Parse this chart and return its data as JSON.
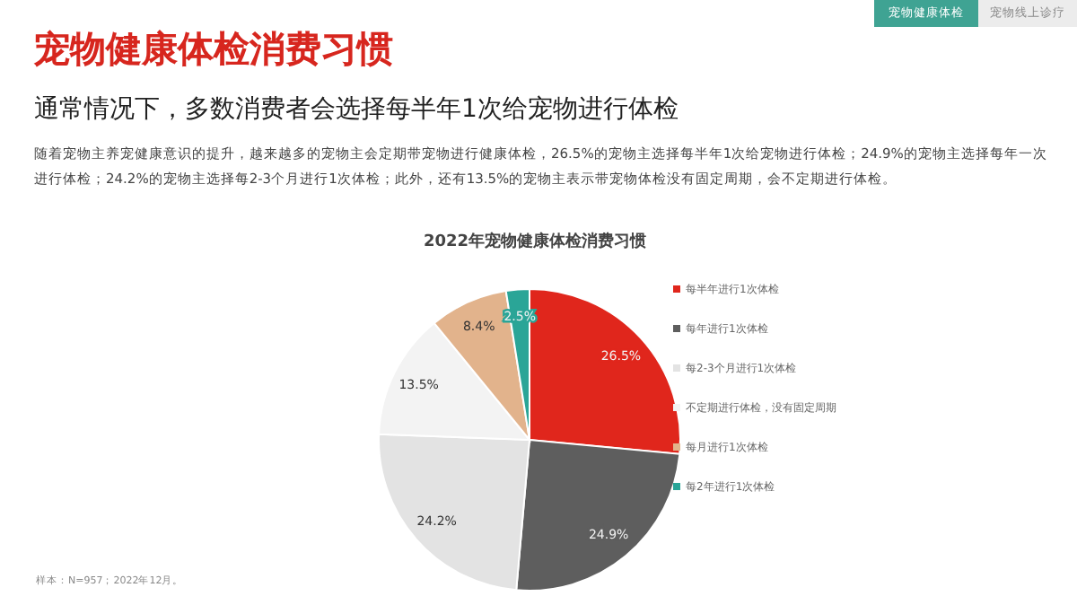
{
  "chart_data": {
    "type": "pie",
    "title": "宠物健康体检消费习惯",
    "subtitle": "通常情况下，多数消费者会选择每半年1次给宠物进行体检",
    "annotations": [
      "宠物健康体检",
      "宠物线上诊疗",
      "随着宠物主养宠健康意识的提升，越来越多的宠物主会定期带宠物进行健康体检，26.5%的宠物主选择每半年1次给宠物进行体检；24.9%的宠物主选择每年一次进行体检；24.2%的宠物主选择每2-3个月进行1次体检；此外，还有13.5%的宠物主表示带宠物体检没有固定周期，会不定期进行体检。",
      "2022年宠物健康体检消费习惯",
      "样本：N=957；2022年12月。"
    ],
    "categories": [
      "每半年进行1次体检",
      "每年进行1次体检",
      "每2-3个月进行1次体检",
      "不定期进行体检，没有固定周期",
      "每月进行1次体检",
      "每2年进行1次体检"
    ],
    "values": [
      26.5,
      24.9,
      24.2,
      13.5,
      8.4,
      2.5
    ],
    "value_labels": [
      "26.5%",
      "24.9%",
      "24.2%",
      "13.5%",
      "8.4%",
      "2.5%"
    ],
    "colors": [
      "#e0261c",
      "#5e5e5e",
      "#e3e3e3",
      "#f3f3f3",
      "#e2b38c",
      "#2aa597"
    ],
    "legend": "right"
  }
}
